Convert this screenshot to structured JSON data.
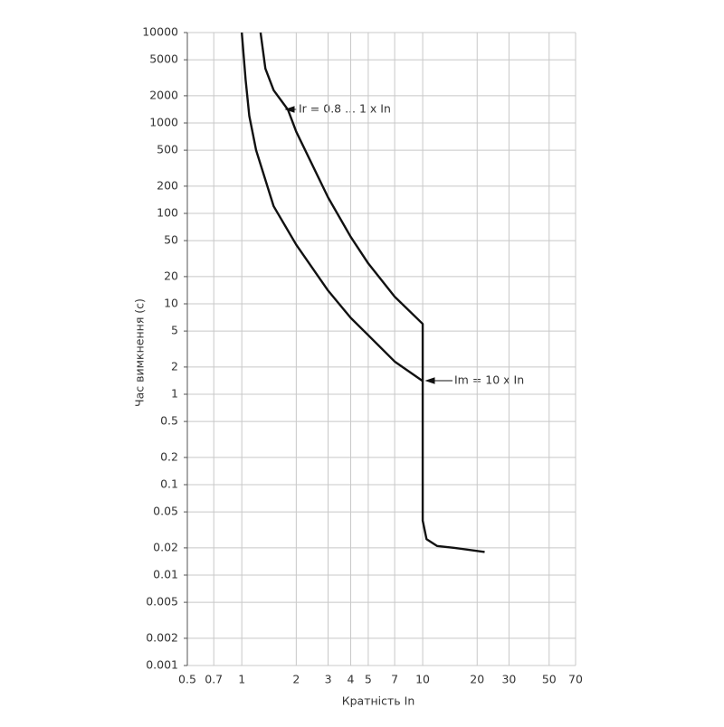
{
  "chart_data": {
    "type": "line",
    "xlabel": "Кратність In",
    "ylabel": "Час вимкнення (с)",
    "xlog": true,
    "ylog": true,
    "grid": true,
    "xlim": [
      0.5,
      70
    ],
    "ylim": [
      0.001,
      10000
    ],
    "xticks": [
      0.5,
      0.7,
      1,
      2,
      3,
      4,
      5,
      7,
      10,
      20,
      30,
      50,
      70
    ],
    "yticks": [
      10000,
      5000,
      2000,
      1000,
      500,
      200,
      100,
      50,
      20,
      10,
      5,
      2,
      1,
      0.5,
      0.2,
      0.1,
      0.05,
      0.02,
      0.01,
      0.005,
      0.002,
      0.001
    ],
    "series": [
      {
        "color": "#111111",
        "x": [
          1.27,
          1.35,
          1.5,
          1.8,
          2,
          3,
          4,
          5,
          7,
          10,
          10,
          10.5,
          12,
          15,
          22
        ],
        "values": [
          10000,
          4000,
          2300,
          1400,
          800,
          150,
          55,
          28,
          12,
          6,
          0.04,
          0.025,
          0.021,
          0.02,
          0.018
        ]
      },
      {
        "color": "#111111",
        "x": [
          1,
          1.05,
          1.1,
          1.2,
          1.5,
          2,
          3,
          4,
          5,
          7,
          10
        ],
        "values": [
          10000,
          3000,
          1200,
          500,
          120,
          45,
          14,
          7,
          4.5,
          2.3,
          1.4
        ]
      }
    ],
    "annotations": [
      {
        "text": "Ir = 0.8 ... 1 x In"
      },
      {
        "text": "Im = 10 x In"
      }
    ]
  }
}
